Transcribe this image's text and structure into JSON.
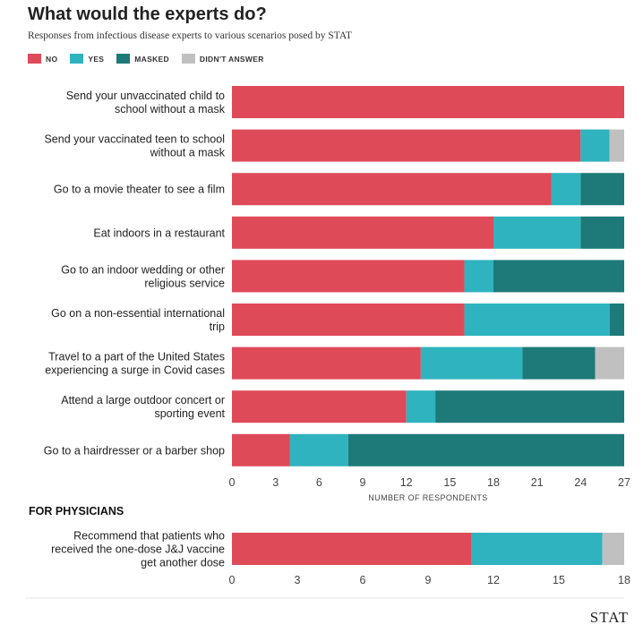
{
  "chart_data": [
    {
      "type": "bar",
      "orientation": "horizontal",
      "stacked": true,
      "title": "What would the experts do?",
      "subtitle": "Responses from infectious disease experts to various scenarios posed by STAT",
      "xlabel": "NUMBER OF RESPONDENTS",
      "xlim": [
        0,
        27
      ],
      "xticks": [
        0,
        3,
        6,
        9,
        12,
        15,
        18,
        21,
        24,
        27
      ],
      "categories": [
        [
          "Send your unvaccinated child to",
          "school without a mask"
        ],
        [
          "Send your vaccinated teen to school",
          "without a mask"
        ],
        [
          "Go to a movie theater to see a film"
        ],
        [
          "Eat indoors in a restaurant"
        ],
        [
          "Go to an indoor wedding or other",
          "religious service"
        ],
        [
          "Go on a non-essential international",
          "trip"
        ],
        [
          "Travel to a part of the United States",
          "experiencing a surge in Covid cases"
        ],
        [
          "Attend a large outdoor concert or",
          "sporting event"
        ],
        [
          "Go to a hairdresser or a barber shop"
        ]
      ],
      "series": [
        {
          "name": "NO",
          "color": "#df4a59",
          "values": [
            27,
            24,
            22,
            18,
            16,
            16,
            13,
            12,
            4
          ]
        },
        {
          "name": "YES",
          "color": "#2fb3bf",
          "values": [
            0,
            2,
            2,
            6,
            2,
            10,
            7,
            2,
            4
          ]
        },
        {
          "name": "MASKED",
          "color": "#1d7a78",
          "values": [
            0,
            0,
            3,
            3,
            9,
            1,
            5,
            13,
            19
          ]
        },
        {
          "name": "DIDN'T ANSWER",
          "color": "#c0c0c0",
          "values": [
            0,
            1,
            0,
            0,
            0,
            0,
            2,
            0,
            0
          ]
        }
      ]
    },
    {
      "type": "bar",
      "orientation": "horizontal",
      "stacked": true,
      "title": "FOR PHYSICIANS",
      "xlim": [
        0,
        18
      ],
      "xticks": [
        0,
        3,
        6,
        9,
        12,
        15,
        18
      ],
      "categories": [
        [
          "Recommend that patients who",
          "received the one-dose J&J vaccine",
          "get another dose"
        ]
      ],
      "series": [
        {
          "name": "NO",
          "color": "#df4a59",
          "values": [
            11
          ]
        },
        {
          "name": "YES",
          "color": "#2fb3bf",
          "values": [
            6
          ]
        },
        {
          "name": "MASKED",
          "color": "#1d7a78",
          "values": [
            0
          ]
        },
        {
          "name": "DIDN'T ANSWER",
          "color": "#c0c0c0",
          "values": [
            1
          ]
        }
      ]
    }
  ],
  "legend": [
    {
      "label": "NO",
      "color": "#df4a59"
    },
    {
      "label": "YES",
      "color": "#2fb3bf"
    },
    {
      "label": "MASKED",
      "color": "#1d7a78"
    },
    {
      "label": "DIDN'T ANSWER",
      "color": "#c0c0c0"
    }
  ],
  "brand": "STAT"
}
